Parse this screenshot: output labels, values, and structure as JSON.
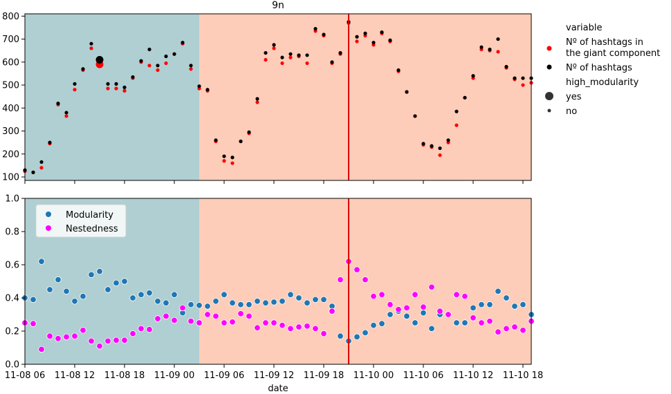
{
  "chart_data": [
    {
      "type": "scatter",
      "title": "9n",
      "xlabel": "",
      "ylabel": "",
      "ylim": [
        85,
        810
      ],
      "x_range_hours": [
        0,
        61
      ],
      "yticks": [
        100,
        200,
        300,
        400,
        500,
        600,
        700,
        800
      ],
      "vline_hour": 39,
      "regions": [
        {
          "from_hour": 0,
          "to_hour": 21,
          "color": "#b0cfd2"
        },
        {
          "from_hour": 21,
          "to_hour": 61,
          "color": "#fdcdb9"
        }
      ],
      "legend": {
        "placement": "outside-right",
        "title_variable": "variable",
        "series_labels": [
          "Nº of hashtags in the giant component",
          "Nº of hashtags"
        ],
        "title_size": "high_modularity",
        "size_labels": [
          "yes",
          "no"
        ]
      },
      "series": [
        {
          "name": "Nº of hashtags in the giant component",
          "color": "#ff0000",
          "x": [
            0,
            1,
            2,
            3,
            4,
            5,
            6,
            7,
            8,
            9,
            10,
            11,
            12,
            13,
            14,
            15,
            16,
            17,
            18,
            19,
            20,
            21,
            22,
            23,
            24,
            25,
            26,
            27,
            28,
            29,
            30,
            31,
            32,
            33,
            34,
            35,
            36,
            37,
            38,
            39,
            40,
            41,
            42,
            43,
            44,
            45,
            46,
            47,
            48,
            49,
            50,
            51,
            52,
            53,
            54,
            55,
            56,
            57,
            58,
            59,
            60,
            61
          ],
          "values": [
            125,
            120,
            140,
            245,
            415,
            365,
            480,
            565,
            660,
            590,
            485,
            485,
            475,
            530,
            600,
            585,
            565,
            595,
            635,
            680,
            570,
            485,
            475,
            255,
            170,
            160,
            255,
            290,
            425,
            610,
            660,
            595,
            620,
            625,
            595,
            735,
            715,
            595,
            635,
            770,
            690,
            715,
            675,
            725,
            690,
            560,
            470,
            365,
            240,
            230,
            195,
            250,
            325,
            445,
            530,
            655,
            650,
            645,
            575,
            525,
            500,
            510
          ],
          "high_modularity": [
            false,
            false,
            false,
            false,
            false,
            false,
            false,
            false,
            false,
            true,
            false,
            false,
            false,
            false,
            false,
            false,
            false,
            false,
            false,
            false,
            false,
            false,
            false,
            false,
            false,
            false,
            false,
            false,
            false,
            false,
            false,
            false,
            false,
            false,
            false,
            false,
            false,
            false,
            false,
            false,
            false,
            false,
            false,
            false,
            false,
            false,
            false,
            false,
            false,
            false,
            false,
            false,
            false,
            false,
            false,
            false,
            false,
            false,
            false,
            false,
            false,
            false
          ]
        },
        {
          "name": "Nº of hashtags",
          "color": "#000000",
          "x": [
            0,
            1,
            2,
            3,
            4,
            5,
            6,
            7,
            8,
            9,
            10,
            11,
            12,
            13,
            14,
            15,
            16,
            17,
            18,
            19,
            20,
            21,
            22,
            23,
            24,
            25,
            26,
            27,
            28,
            29,
            30,
            31,
            32,
            33,
            34,
            35,
            36,
            37,
            38,
            39,
            40,
            41,
            42,
            43,
            44,
            45,
            46,
            47,
            48,
            49,
            50,
            51,
            52,
            53,
            54,
            55,
            56,
            57,
            58,
            59,
            60,
            61
          ],
          "values": [
            130,
            120,
            165,
            250,
            420,
            380,
            505,
            570,
            680,
            610,
            505,
            505,
            490,
            535,
            605,
            655,
            585,
            625,
            635,
            685,
            585,
            495,
            480,
            260,
            190,
            185,
            255,
            295,
            440,
            640,
            675,
            620,
            635,
            630,
            630,
            745,
            720,
            600,
            640,
            775,
            710,
            725,
            685,
            730,
            695,
            565,
            470,
            365,
            245,
            235,
            225,
            260,
            385,
            445,
            540,
            665,
            655,
            700,
            580,
            530,
            530,
            530
          ],
          "high_modularity": [
            false,
            false,
            false,
            false,
            false,
            false,
            false,
            false,
            false,
            true,
            false,
            false,
            false,
            false,
            false,
            false,
            false,
            false,
            false,
            false,
            false,
            false,
            false,
            false,
            false,
            false,
            false,
            false,
            false,
            false,
            false,
            false,
            false,
            false,
            false,
            false,
            false,
            false,
            false,
            false,
            false,
            false,
            false,
            false,
            false,
            false,
            false,
            false,
            false,
            false,
            false,
            false,
            false,
            false,
            false,
            false,
            false,
            false,
            false,
            false,
            false,
            false
          ]
        }
      ]
    },
    {
      "type": "scatter",
      "title": "",
      "xlabel": "date",
      "ylabel": "",
      "ylim": [
        0.0,
        1.0
      ],
      "x_range_hours": [
        0,
        61
      ],
      "yticks": [
        "0.0",
        "0.2",
        "0.4",
        "0.6",
        "0.8",
        "1.0"
      ],
      "xticks": [
        {
          "hour": 0,
          "label": "11-08 06"
        },
        {
          "hour": 6,
          "label": "11-08 12"
        },
        {
          "hour": 12,
          "label": "11-08 18"
        },
        {
          "hour": 18,
          "label": "11-09 00"
        },
        {
          "hour": 24,
          "label": "11-09 06"
        },
        {
          "hour": 30,
          "label": "11-09 12"
        },
        {
          "hour": 36,
          "label": "11-09 18"
        },
        {
          "hour": 42,
          "label": "11-10 00"
        },
        {
          "hour": 48,
          "label": "11-10 06"
        },
        {
          "hour": 54,
          "label": "11-10 12"
        },
        {
          "hour": 60,
          "label": "11-10 18"
        }
      ],
      "vline_hour": 39,
      "legend": {
        "placement": "upper-left",
        "labels": [
          "Modularity",
          "Nestedness"
        ]
      },
      "series": [
        {
          "name": "Modularity",
          "color": "#1f77b4",
          "x": [
            0,
            1,
            2,
            3,
            4,
            5,
            6,
            7,
            8,
            9,
            10,
            11,
            12,
            13,
            14,
            15,
            16,
            17,
            18,
            19,
            20,
            21,
            22,
            23,
            24,
            25,
            26,
            27,
            28,
            29,
            30,
            31,
            32,
            33,
            34,
            35,
            36,
            37,
            38,
            39,
            40,
            41,
            42,
            43,
            44,
            45,
            46,
            47,
            48,
            49,
            50,
            51,
            52,
            53,
            54,
            55,
            56,
            57,
            58,
            59,
            60,
            61
          ],
          "values": [
            0.4,
            0.39,
            0.62,
            0.45,
            0.51,
            0.44,
            0.38,
            0.41,
            0.54,
            0.56,
            0.45,
            0.49,
            0.5,
            0.4,
            0.42,
            0.43,
            0.38,
            0.37,
            0.42,
            0.31,
            0.36,
            0.355,
            0.35,
            0.38,
            0.42,
            0.37,
            0.36,
            0.36,
            0.38,
            0.37,
            0.375,
            0.38,
            0.42,
            0.4,
            0.37,
            0.39,
            0.39,
            0.35,
            0.17,
            0.14,
            0.165,
            0.19,
            0.235,
            0.245,
            0.3,
            0.32,
            0.29,
            0.25,
            0.31,
            0.215,
            0.3,
            0.3,
            0.25,
            0.25,
            0.34,
            0.36,
            0.36,
            0.44,
            0.4,
            0.35,
            0.36,
            0.3
          ]
        },
        {
          "name": "Nestedness",
          "color": "#ff00ff",
          "x": [
            0,
            1,
            2,
            3,
            4,
            5,
            6,
            7,
            8,
            9,
            10,
            11,
            12,
            13,
            14,
            15,
            16,
            17,
            18,
            19,
            20,
            21,
            22,
            23,
            24,
            25,
            26,
            27,
            28,
            29,
            30,
            31,
            32,
            33,
            34,
            35,
            36,
            37,
            38,
            39,
            40,
            41,
            42,
            43,
            44,
            45,
            46,
            47,
            48,
            49,
            50,
            51,
            52,
            53,
            54,
            55,
            56,
            57,
            58,
            59,
            60,
            61
          ],
          "values": [
            0.25,
            0.245,
            0.09,
            0.17,
            0.155,
            0.165,
            0.17,
            0.205,
            0.14,
            0.11,
            0.14,
            0.145,
            0.145,
            0.185,
            0.215,
            0.21,
            0.275,
            0.29,
            0.265,
            0.34,
            0.26,
            0.25,
            0.3,
            0.29,
            0.25,
            0.255,
            0.305,
            0.29,
            0.22,
            0.25,
            0.25,
            0.235,
            0.215,
            0.225,
            0.23,
            0.215,
            0.185,
            0.32,
            0.51,
            0.62,
            0.57,
            0.51,
            0.41,
            0.42,
            0.36,
            0.33,
            0.34,
            0.42,
            0.345,
            0.465,
            0.32,
            0.3,
            0.42,
            0.41,
            0.28,
            0.25,
            0.26,
            0.195,
            0.215,
            0.225,
            0.205,
            0.26
          ]
        }
      ]
    }
  ]
}
